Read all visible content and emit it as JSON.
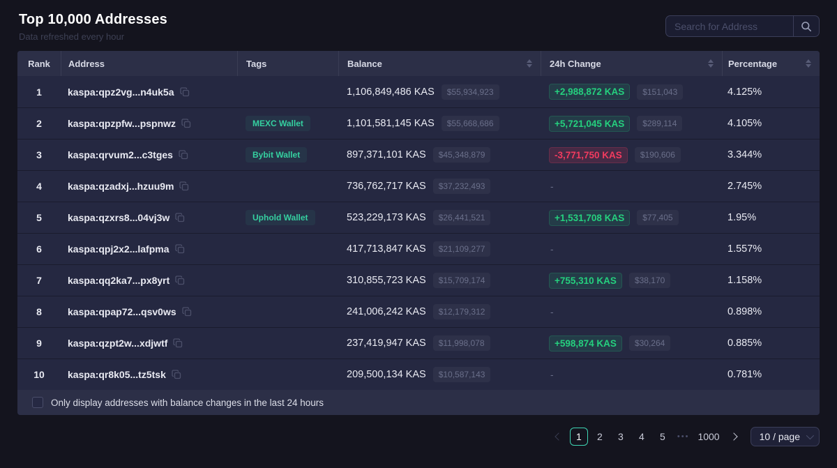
{
  "page": {
    "title": "Top 10,000 Addresses",
    "subtitle": "Data refreshed every hour"
  },
  "search": {
    "placeholder": "Search for Address"
  },
  "table": {
    "columns": [
      "Rank",
      "Address",
      "Tags",
      "Balance",
      "24h Change",
      "Percentage"
    ],
    "rows": [
      {
        "rank": "1",
        "address": "kaspa:qpz2vg...n4uk5a",
        "tag": "",
        "balance": "1,106,849,486 KAS",
        "balance_usd": "$55,934,923",
        "change": "+2,988,872 KAS",
        "change_dir": "up",
        "change_usd": "$151,043",
        "percentage": "4.125%"
      },
      {
        "rank": "2",
        "address": "kaspa:qpzpfw...pspnwz",
        "tag": "MEXC Wallet",
        "balance": "1,101,581,145 KAS",
        "balance_usd": "$55,668,686",
        "change": "+5,721,045 KAS",
        "change_dir": "up",
        "change_usd": "$289,114",
        "percentage": "4.105%"
      },
      {
        "rank": "3",
        "address": "kaspa:qrvum2...c3tges",
        "tag": "Bybit Wallet",
        "balance": "897,371,101 KAS",
        "balance_usd": "$45,348,879",
        "change": "-3,771,750 KAS",
        "change_dir": "down",
        "change_usd": "$190,606",
        "percentage": "3.344%"
      },
      {
        "rank": "4",
        "address": "kaspa:qzadxj...hzuu9m",
        "tag": "",
        "balance": "736,762,717 KAS",
        "balance_usd": "$37,232,493",
        "change": "-",
        "change_dir": "none",
        "change_usd": "",
        "percentage": "2.745%"
      },
      {
        "rank": "5",
        "address": "kaspa:qzxrs8...04vj3w",
        "tag": "Uphold Wallet",
        "balance": "523,229,173 KAS",
        "balance_usd": "$26,441,521",
        "change": "+1,531,708 KAS",
        "change_dir": "up",
        "change_usd": "$77,405",
        "percentage": "1.95%"
      },
      {
        "rank": "6",
        "address": "kaspa:qpj2x2...lafpma",
        "tag": "",
        "balance": "417,713,847 KAS",
        "balance_usd": "$21,109,277",
        "change": "-",
        "change_dir": "none",
        "change_usd": "",
        "percentage": "1.557%"
      },
      {
        "rank": "7",
        "address": "kaspa:qq2ka7...px8yrt",
        "tag": "",
        "balance": "310,855,723 KAS",
        "balance_usd": "$15,709,174",
        "change": "+755,310 KAS",
        "change_dir": "up",
        "change_usd": "$38,170",
        "percentage": "1.158%"
      },
      {
        "rank": "8",
        "address": "kaspa:qpap72...qsv0ws",
        "tag": "",
        "balance": "241,006,242 KAS",
        "balance_usd": "$12,179,312",
        "change": "-",
        "change_dir": "none",
        "change_usd": "",
        "percentage": "0.898%"
      },
      {
        "rank": "9",
        "address": "kaspa:qzpt2w...xdjwtf",
        "tag": "",
        "balance": "237,419,947 KAS",
        "balance_usd": "$11,998,078",
        "change": "+598,874 KAS",
        "change_dir": "up",
        "change_usd": "$30,264",
        "percentage": "0.885%"
      },
      {
        "rank": "10",
        "address": "kaspa:qr8k05...tz5tsk",
        "tag": "",
        "balance": "209,500,134 KAS",
        "balance_usd": "$10,587,143",
        "change": "-",
        "change_dir": "none",
        "change_usd": "",
        "percentage": "0.781%"
      }
    ]
  },
  "filter": {
    "label": "Only display addresses with balance changes in the last 24 hours",
    "checked": false
  },
  "pagination": {
    "pages": [
      "1",
      "2",
      "3",
      "4",
      "5"
    ],
    "active_page": "1",
    "ellipsis": "•••",
    "last_page": "1000",
    "page_size": "10 / page"
  },
  "colors": {
    "background": "#14141e",
    "card": "#252841",
    "header_row": "#2c2f47",
    "positive": "#25d07e",
    "negative": "#f23b5f",
    "tag_accent": "#35d0a0",
    "active_page_border": "#3fd6b4"
  }
}
